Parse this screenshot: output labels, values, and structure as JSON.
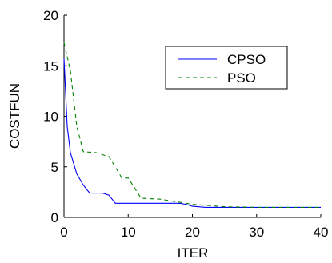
{
  "chart_data": {
    "type": "line",
    "title": "",
    "xlabel": "ITER",
    "ylabel": "COSTFUN",
    "xlim": [
      0,
      40
    ],
    "ylim": [
      0,
      20
    ],
    "xticks": [
      0,
      10,
      20,
      30,
      40
    ],
    "yticks": [
      0,
      5,
      10,
      15,
      20
    ],
    "grid": false,
    "legend_position": "top-right",
    "series": [
      {
        "name": "CPSO",
        "color": "#0000ff",
        "style": "solid",
        "x": [
          0,
          0.5,
          1,
          2,
          3,
          4,
          5,
          6,
          7,
          8,
          9,
          10,
          15,
          18,
          19,
          20,
          21,
          22,
          23,
          30,
          40
        ],
        "y": [
          15.7,
          9,
          6.4,
          4.3,
          3.2,
          2.4,
          2.4,
          2.4,
          2.2,
          1.4,
          1.4,
          1.4,
          1.4,
          1.4,
          1.3,
          1.1,
          1.05,
          1.0,
          1.0,
          1.0,
          1.0
        ]
      },
      {
        "name": "PSO",
        "color": "#008000",
        "style": "dashed",
        "x": [
          0,
          1,
          2,
          3,
          5,
          7,
          8,
          9,
          10,
          11,
          12,
          15,
          17,
          18,
          20,
          22,
          25,
          30,
          40
        ],
        "y": [
          17.3,
          14.5,
          9.0,
          6.5,
          6.4,
          6.0,
          5.0,
          3.9,
          3.9,
          2.9,
          1.9,
          1.8,
          1.6,
          1.5,
          1.3,
          1.2,
          1.05,
          1.0,
          1.0
        ]
      }
    ]
  }
}
